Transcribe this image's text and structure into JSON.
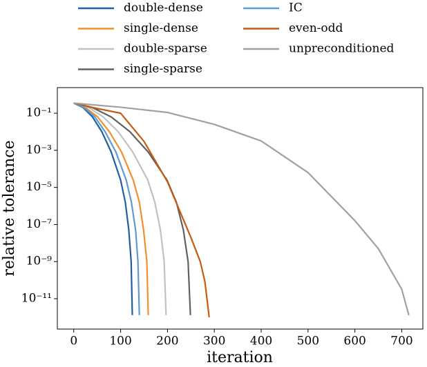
{
  "chart_data": {
    "type": "line",
    "xlabel": "iteration",
    "ylabel": "relative tolerance",
    "xlim": [
      -35,
      745
    ],
    "xticks": [
      0,
      100,
      200,
      300,
      400,
      500,
      600,
      700
    ],
    "ylim": [
      2.3e-13,
      2.4
    ],
    "yscale": "log",
    "yticks": [
      {
        "value": 0.1,
        "label": "10⁻¹"
      },
      {
        "value": 0.001,
        "label": "10⁻³"
      },
      {
        "value": 1e-05,
        "label": "10⁻⁵"
      },
      {
        "value": 1e-07,
        "label": "10⁻⁷"
      },
      {
        "value": 1e-09,
        "label": "10⁻⁹"
      },
      {
        "value": 1e-11,
        "label": "10⁻¹¹"
      }
    ],
    "legend": "top",
    "series": [
      {
        "name": "double-dense",
        "color": "#1f5fa0",
        "x": [
          0,
          20,
          40,
          60,
          80,
          100,
          110,
          117.5,
          122.5,
          125
        ],
        "values": [
          0.35,
          0.2,
          0.063,
          0.01,
          0.0008,
          2.5e-05,
          1.6e-06,
          5e-08,
          1e-09,
          1.3e-12
        ]
      },
      {
        "name": "single-dense",
        "color": "#f28e2b",
        "x": [
          0,
          25,
          51,
          76,
          102,
          127,
          140,
          149,
          156,
          159
        ],
        "values": [
          0.35,
          0.2,
          0.063,
          0.01,
          0.0008,
          2.5e-05,
          1.6e-06,
          5e-08,
          1e-09,
          1.3e-12
        ]
      },
      {
        "name": "double-sparse",
        "color": "#c0c0c0",
        "x": [
          0,
          32,
          63,
          95,
          126,
          158,
          173,
          185,
          193,
          197
        ],
        "values": [
          0.35,
          0.2,
          0.063,
          0.01,
          0.0008,
          2.5e-05,
          1.6e-06,
          5e-08,
          1e-09,
          1.3e-12
        ]
      },
      {
        "name": "single-sparse",
        "color": "#606060",
        "x": [
          0,
          40,
          80,
          120,
          159,
          199,
          219,
          234,
          244,
          249
        ],
        "values": [
          0.35,
          0.2,
          0.063,
          0.01,
          0.0008,
          2.5e-05,
          1.6e-06,
          5e-08,
          1e-09,
          1.3e-12
        ]
      },
      {
        "name": "IC",
        "color": "#5b9bd5",
        "x": [
          0,
          22,
          45,
          67,
          90,
          112,
          123,
          132,
          137,
          140
        ],
        "values": [
          0.35,
          0.2,
          0.063,
          0.01,
          0.0008,
          2.5e-05,
          1.6e-06,
          5e-08,
          1e-09,
          1.3e-12
        ]
      },
      {
        "name": "even-odd",
        "color": "#c65a11",
        "x": [
          0,
          50,
          100,
          150,
          200,
          250,
          270,
          280,
          289
        ],
        "values": [
          0.35,
          0.18,
          0.1,
          0.003,
          2e-05,
          2e-08,
          1e-09,
          8e-11,
          1e-12
        ]
      },
      {
        "name": "unpreconditioned",
        "color": "#a0a0a0",
        "x": [
          0,
          100,
          200,
          300,
          400,
          500,
          600,
          650,
          700,
          715
        ],
        "values": [
          0.35,
          0.21,
          0.11,
          0.025,
          0.0032,
          6.3e-05,
          1.6e-07,
          5e-09,
          3.2e-11,
          1.3e-12
        ]
      }
    ]
  }
}
